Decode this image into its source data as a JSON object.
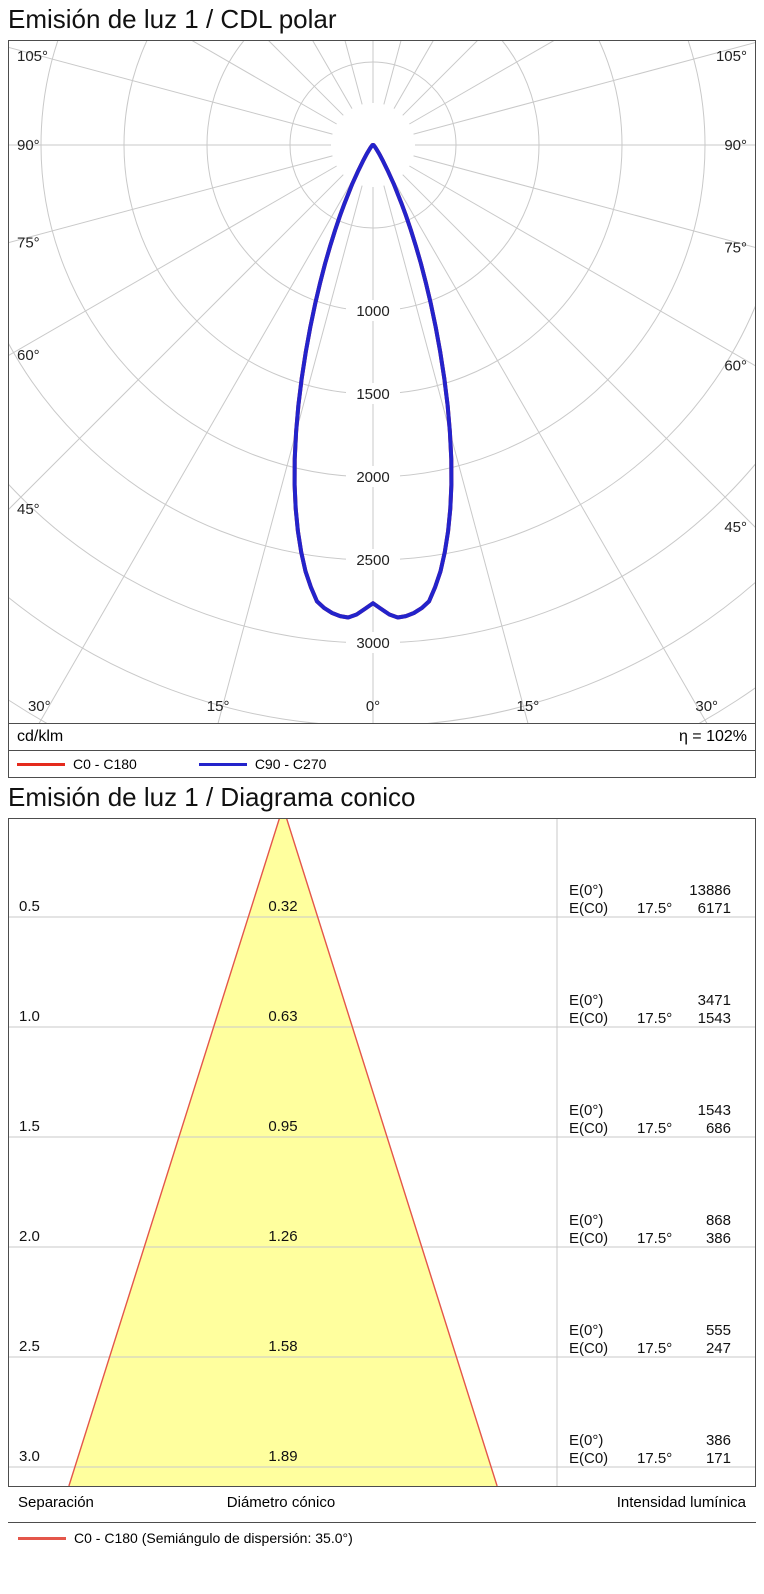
{
  "page": {
    "polar": {
      "title": "Emisión de luz 1 / CDL polar",
      "unit": "cd/klm",
      "efficiency": "η = 102%",
      "legend": [
        {
          "label": "C0 - C180",
          "color": "#e42a1d"
        },
        {
          "label": "C90 - C270",
          "color": "#2323cb"
        }
      ]
    },
    "cone": {
      "title": "Emisión de luz 1 / Diagrama conico",
      "footer": {
        "separation": "Separación",
        "diameter": "Diámetro cónico",
        "intensity": "Intensidad lumínica"
      },
      "legend": {
        "label": "C0 - C180 (Semiángulo de dispersión: 35.0°)",
        "color": "#e4564a"
      }
    }
  },
  "chart_data": [
    {
      "type": "line",
      "subtype": "polar-intensity-diagram",
      "title": "Emisión de luz 1 / CDL polar",
      "unit": "cd/klm",
      "efficiency_percent": 102,
      "angle_labels_deg": [
        0,
        15,
        30,
        45,
        60,
        75,
        90,
        105
      ],
      "radial_ticks": [
        1000,
        1500,
        2000,
        2500,
        3000
      ],
      "radial_grid_step": 500,
      "radial_grid_max": 4500,
      "grid_color": "#c9c9c9",
      "series": [
        {
          "name": "C0 - C180",
          "color": "#e42a1d",
          "angles_deg": [
            0,
            1,
            2,
            3,
            4,
            5,
            6,
            7,
            8,
            9,
            10,
            11,
            12,
            13,
            14,
            15,
            16,
            17,
            18,
            19,
            20,
            21,
            22,
            23,
            24,
            25,
            26,
            28,
            30,
            32,
            35,
            40,
            45,
            50,
            55,
            60,
            70,
            80,
            90
          ],
          "values_cd_per_klm": [
            2760,
            2795,
            2830,
            2850,
            2845,
            2830,
            2805,
            2770,
            2690,
            2600,
            2490,
            2370,
            2240,
            2100,
            1950,
            1790,
            1630,
            1470,
            1310,
            1160,
            1020,
            890,
            770,
            660,
            560,
            470,
            390,
            265,
            175,
            115,
            65,
            32,
            18,
            12,
            9,
            7,
            5,
            3,
            0
          ]
        },
        {
          "name": "C90 - C270",
          "color": "#2323cb",
          "angles_deg": [
            0,
            1,
            2,
            3,
            4,
            5,
            6,
            7,
            8,
            9,
            10,
            11,
            12,
            13,
            14,
            15,
            16,
            17,
            18,
            19,
            20,
            21,
            22,
            23,
            24,
            25,
            26,
            28,
            30,
            32,
            35,
            40,
            45,
            50,
            55,
            60,
            70,
            80,
            90
          ],
          "values_cd_per_klm": [
            2760,
            2795,
            2830,
            2850,
            2845,
            2830,
            2805,
            2770,
            2690,
            2600,
            2490,
            2370,
            2240,
            2100,
            1950,
            1790,
            1630,
            1470,
            1310,
            1160,
            1020,
            890,
            770,
            660,
            560,
            470,
            390,
            265,
            175,
            115,
            65,
            32,
            18,
            12,
            9,
            7,
            5,
            3,
            0
          ]
        }
      ]
    },
    {
      "type": "area",
      "subtype": "cone-diagram",
      "title": "Emisión de luz 1 / Diagrama conico",
      "curve": "C0 - C180",
      "beam_half_angle_deg": 17.5,
      "beam_full_angle_deg": 35.0,
      "cone_fill": "#ffff9e",
      "cone_outline": "#e4564a",
      "grid_color": "#c9c9c9",
      "angle_label": "17.5°",
      "e0_label": "E(0°)",
      "ec0_label": "E(C0)",
      "rows": [
        {
          "separation_m": "0.5",
          "cone_diameter_m": "0.32",
          "e0_lux": "13886",
          "ec0_lux": "6171"
        },
        {
          "separation_m": "1.0",
          "cone_diameter_m": "0.63",
          "e0_lux": "3471",
          "ec0_lux": "1543"
        },
        {
          "separation_m": "1.5",
          "cone_diameter_m": "0.95",
          "e0_lux": "1543",
          "ec0_lux": "686"
        },
        {
          "separation_m": "2.0",
          "cone_diameter_m": "1.26",
          "e0_lux": "868",
          "ec0_lux": "386"
        },
        {
          "separation_m": "2.5",
          "cone_diameter_m": "1.58",
          "e0_lux": "555",
          "ec0_lux": "247"
        },
        {
          "separation_m": "3.0",
          "cone_diameter_m": "1.89",
          "e0_lux": "386",
          "ec0_lux": "171"
        }
      ]
    }
  ]
}
